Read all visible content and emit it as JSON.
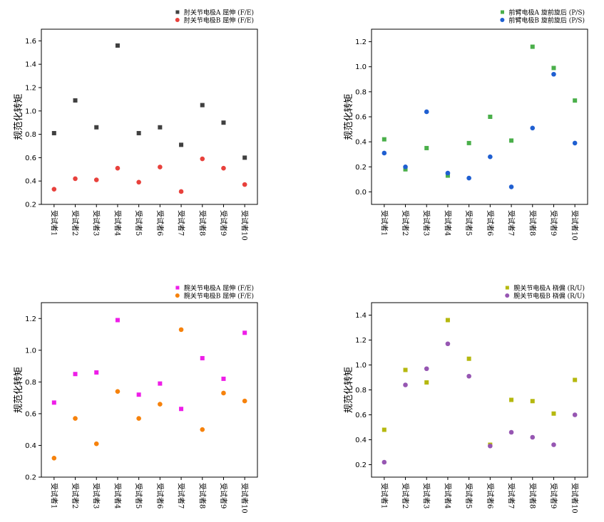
{
  "chart_data": [
    {
      "type": "scatter",
      "categories": [
        "受试者1",
        "受试者2",
        "受试者3",
        "受试者4",
        "受试者5",
        "受试者6",
        "受试者7",
        "受试者8",
        "受试者9",
        "受试者10"
      ],
      "ylabel": "规范化转矩",
      "ylim": [
        0.2,
        1.7
      ],
      "yticks": [
        0.2,
        0.4,
        0.6,
        0.8,
        1.0,
        1.2,
        1.4,
        1.6
      ],
      "legend_position": "top-right",
      "series": [
        {
          "name": "肘关节电极A 屈伸 (F/E)",
          "marker": "square",
          "color": "#404040",
          "values": [
            0.81,
            1.09,
            0.86,
            1.56,
            0.81,
            0.86,
            0.71,
            1.05,
            0.9,
            0.6
          ]
        },
        {
          "name": "肘关节电极B 屈伸 (F/E)",
          "marker": "circle",
          "color": "#e8413c",
          "values": [
            0.33,
            0.42,
            0.41,
            0.51,
            0.39,
            0.52,
            0.31,
            0.59,
            0.51,
            0.37
          ]
        }
      ]
    },
    {
      "type": "scatter",
      "categories": [
        "受试者1",
        "受试者2",
        "受试者3",
        "受试者4",
        "受试者5",
        "受试者6",
        "受试者7",
        "受试者8",
        "受试者9",
        "受试者10"
      ],
      "ylabel": "规范化转矩",
      "ylim": [
        -0.1,
        1.3
      ],
      "yticks": [
        0.0,
        0.2,
        0.4,
        0.6,
        0.8,
        1.0,
        1.2
      ],
      "legend_position": "top-right",
      "series": [
        {
          "name": "前臂电极A 旋前旋后 (P/S)",
          "marker": "square",
          "color": "#4aaf4a",
          "values": [
            0.42,
            0.18,
            0.35,
            0.13,
            0.39,
            0.6,
            0.41,
            1.16,
            0.99,
            0.73
          ]
        },
        {
          "name": "前臂电极B 旋前旋后 (P/S)",
          "marker": "circle",
          "color": "#1f5fd1",
          "values": [
            0.31,
            0.2,
            0.64,
            0.15,
            0.11,
            0.28,
            0.04,
            0.51,
            0.94,
            0.39
          ]
        }
      ]
    },
    {
      "type": "scatter",
      "categories": [
        "受试者1",
        "受试者2",
        "受试者3",
        "受试者4",
        "受试者5",
        "受试者6",
        "受试者7",
        "受试者8",
        "受试者9",
        "受试者10"
      ],
      "ylabel": "规范化转矩",
      "ylim": [
        0.2,
        1.3
      ],
      "yticks": [
        0.2,
        0.4,
        0.6,
        0.8,
        1.0,
        1.2
      ],
      "legend_position": "top-right",
      "series": [
        {
          "name": "腕关节电极A 屈伸 (F/E)",
          "marker": "square",
          "color": "#ee1ee8",
          "values": [
            0.67,
            0.85,
            0.86,
            1.19,
            0.72,
            0.79,
            0.63,
            0.95,
            0.82,
            1.11
          ]
        },
        {
          "name": "腕关节电极B 屈伸 (F/E)",
          "marker": "circle",
          "color": "#f6820c",
          "values": [
            0.32,
            0.57,
            0.41,
            0.74,
            0.57,
            0.66,
            1.13,
            0.5,
            0.73,
            0.68
          ]
        }
      ]
    },
    {
      "type": "scatter",
      "categories": [
        "受试者1",
        "受试者2",
        "受试者3",
        "受试者4",
        "受试者5",
        "受试者6",
        "受试者7",
        "受试者8",
        "受试者9",
        "受试者10"
      ],
      "ylabel": "规范化转矩",
      "ylim": [
        0.1,
        1.5
      ],
      "yticks": [
        0.2,
        0.4,
        0.6,
        0.8,
        1.0,
        1.2,
        1.4
      ],
      "legend_position": "top-right",
      "series": [
        {
          "name": "腕关节电极A 桡偏 (R/U)",
          "marker": "square",
          "color": "#b5b80f",
          "values": [
            0.48,
            0.96,
            0.86,
            1.36,
            1.05,
            0.36,
            0.72,
            0.71,
            0.61,
            0.88
          ]
        },
        {
          "name": "腕关节电极B 桡偏 (R/U)",
          "marker": "circle",
          "color": "#9656b2",
          "values": [
            0.22,
            0.84,
            0.97,
            1.17,
            0.91,
            0.35,
            0.46,
            0.42,
            0.36,
            0.6
          ]
        }
      ]
    }
  ]
}
